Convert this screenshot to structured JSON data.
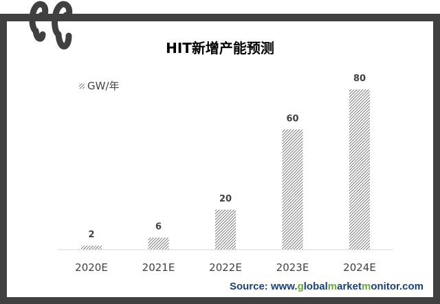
{
  "chart_data": {
    "type": "bar",
    "title": "HIT新增产能预测",
    "categories": [
      "2020E",
      "2021E",
      "2022E",
      "2023E",
      "2024E"
    ],
    "series": [
      {
        "name": "GW/年",
        "values": [
          2,
          6,
          20,
          60,
          80
        ]
      }
    ],
    "data_labels": [
      "2",
      "6",
      "20",
      "60",
      "80"
    ],
    "fill": "diagonal-hatch",
    "colors": {
      "bar": "#404040",
      "frame": "#404040",
      "axis": "#d9d9d9"
    },
    "ylim": [
      0,
      80
    ],
    "grid": false,
    "legend": "top-left"
  },
  "source": {
    "parts": [
      "Source: www.",
      "g",
      "lobal",
      "m",
      "arket",
      "m",
      "onitor.com"
    ]
  },
  "logo": "CC"
}
